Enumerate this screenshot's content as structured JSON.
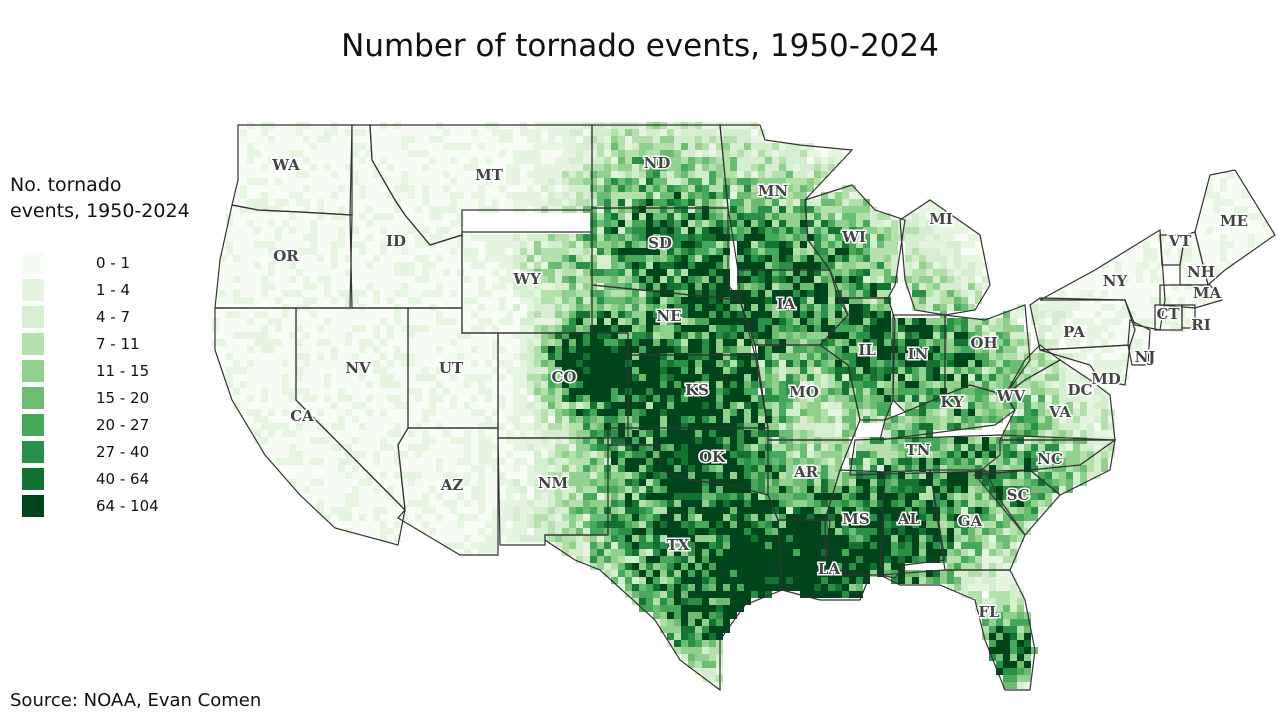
{
  "title": "Number of tornado events, 1950-2024",
  "legend": {
    "title_line1": "No. tornado",
    "title_line2": "events, 1950-2024",
    "bins": [
      {
        "label": "0 - 1",
        "color": "#f7fcf5"
      },
      {
        "label": "1 - 4",
        "color": "#e5f5e0"
      },
      {
        "label": "4 - 7",
        "color": "#d4eecf"
      },
      {
        "label": "7 - 11",
        "color": "#b3e0ab"
      },
      {
        "label": "11 - 15",
        "color": "#92d08e"
      },
      {
        "label": "15 - 20",
        "color": "#6cbd73"
      },
      {
        "label": "20 - 27",
        "color": "#46a85b"
      },
      {
        "label": "27 - 40",
        "color": "#2a8f47"
      },
      {
        "label": "40 - 64",
        "color": "#127332"
      },
      {
        "label": "64 - 104",
        "color": "#00441b"
      }
    ]
  },
  "states": [
    "WA",
    "OR",
    "CA",
    "ID",
    "NV",
    "MT",
    "WY",
    "UT",
    "AZ",
    "CO",
    "NM",
    "ND",
    "SD",
    "NE",
    "KS",
    "OK",
    "TX",
    "MN",
    "IA",
    "MO",
    "AR",
    "LA",
    "WI",
    "IL",
    "MI",
    "IN",
    "OH",
    "KY",
    "TN",
    "MS",
    "AL",
    "GA",
    "FL",
    "SC",
    "NC",
    "VA",
    "WV",
    "PA",
    "NY",
    "VT",
    "NH",
    "ME",
    "MA",
    "CT",
    "RI",
    "NJ",
    "MD",
    "DC"
  ],
  "source": "Source: NOAA, Evan Comen"
}
